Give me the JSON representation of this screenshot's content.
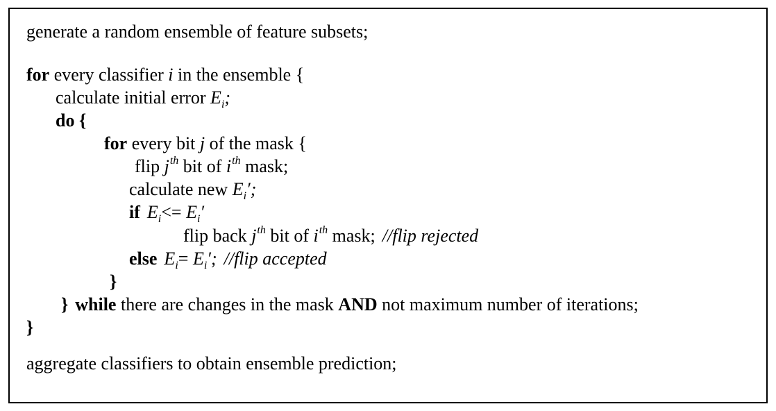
{
  "algorithm": {
    "line1": "generate a random ensemble of feature subsets;",
    "for_kw": "for",
    "for_text": " every classifier ",
    "var_i": "i",
    "in_ensemble": "  in the ensemble  {",
    "calc_initial": "calculate initial error ",
    "E": "E",
    "sub_i": "i",
    "semi_comma": ";",
    "do_kw": "do  {",
    "for_bits_text": " every bit ",
    "var_j": "j",
    "of_mask": " of the mask  {",
    "flip": "flip ",
    "th": "th",
    "bit_of": "  bit of ",
    "mask": "  mask;",
    "calc_new": "calculate new ",
    "prime_semi": "′;",
    "if_kw": "if",
    "leq": "<= ",
    "prime": "′",
    "flip_back": "flip back ",
    "comment_rejected": "//flip rejected",
    "else_kw": "else",
    "eq": "= ",
    "comment_accepted": "//flip accepted",
    "close_brace": "}",
    "while_kw": "while",
    "while_text": " there are changes in the mask ",
    "and_kw": "AND",
    "not_text": " not  maximum number of iterations;",
    "last_line": "aggregate classifiers to obtain ensemble prediction;"
  }
}
